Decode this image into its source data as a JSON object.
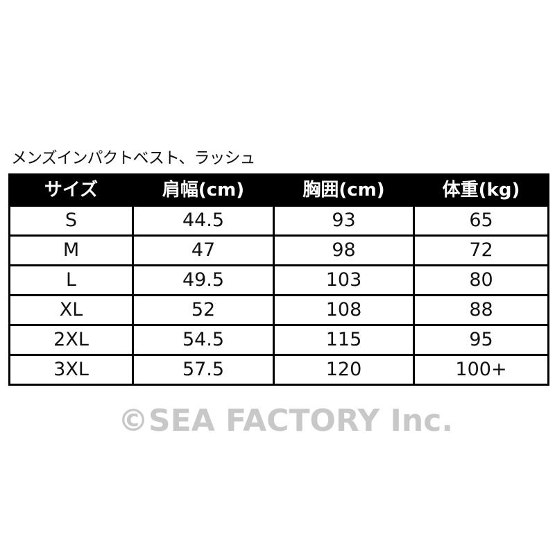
{
  "title": "メンズインパクトベスト、ラッシュ",
  "table": {
    "headers": [
      "サイズ",
      "肩幅(cm)",
      "胸囲(cm)",
      "体重(kg)"
    ],
    "rows": [
      [
        "S",
        "44.5",
        "93",
        "65"
      ],
      [
        "M",
        "47",
        "98",
        "72"
      ],
      [
        "L",
        "49.5",
        "103",
        "80"
      ],
      [
        "XL",
        "52",
        "108",
        "88"
      ],
      [
        "2XL",
        "54.5",
        "115",
        "95"
      ],
      [
        "3XL",
        "57.5",
        "120",
        "100+"
      ]
    ]
  },
  "watermark": "©SEA FACTORY Inc."
}
